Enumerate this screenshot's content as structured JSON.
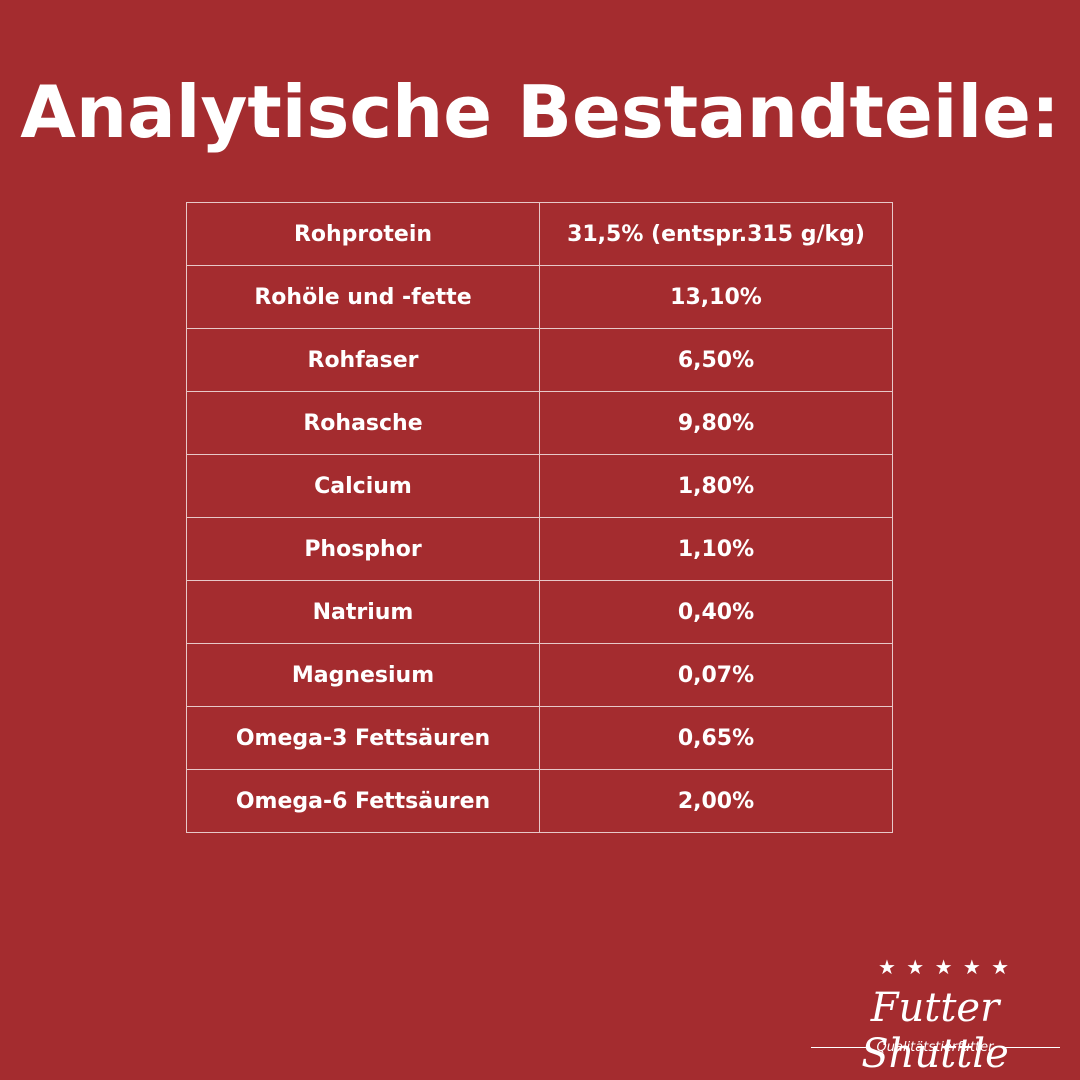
{
  "header": {
    "title": "Analytische Bestandteile:"
  },
  "table": {
    "rows": [
      [
        "Rohprotein",
        "31,5% (entspr.315 g/kg)"
      ],
      [
        "Rohöle und -fette",
        "13,10%"
      ],
      [
        "Rohfaser",
        "6,50%"
      ],
      [
        "Rohasche",
        "9,80%"
      ],
      [
        "Calcium",
        "1,80%"
      ],
      [
        "Phosphor",
        "1,10%"
      ],
      [
        "Natrium",
        "0,40%"
      ],
      [
        "Magnesium",
        "0,07%"
      ],
      [
        "Omega-3 Fettsäuren",
        "0,65%"
      ],
      [
        "Omega-6 Fettsäuren",
        "2,00%"
      ]
    ]
  },
  "logo": {
    "name": "Futter Shuttle",
    "tagline": "Qualitätstierfutter"
  }
}
